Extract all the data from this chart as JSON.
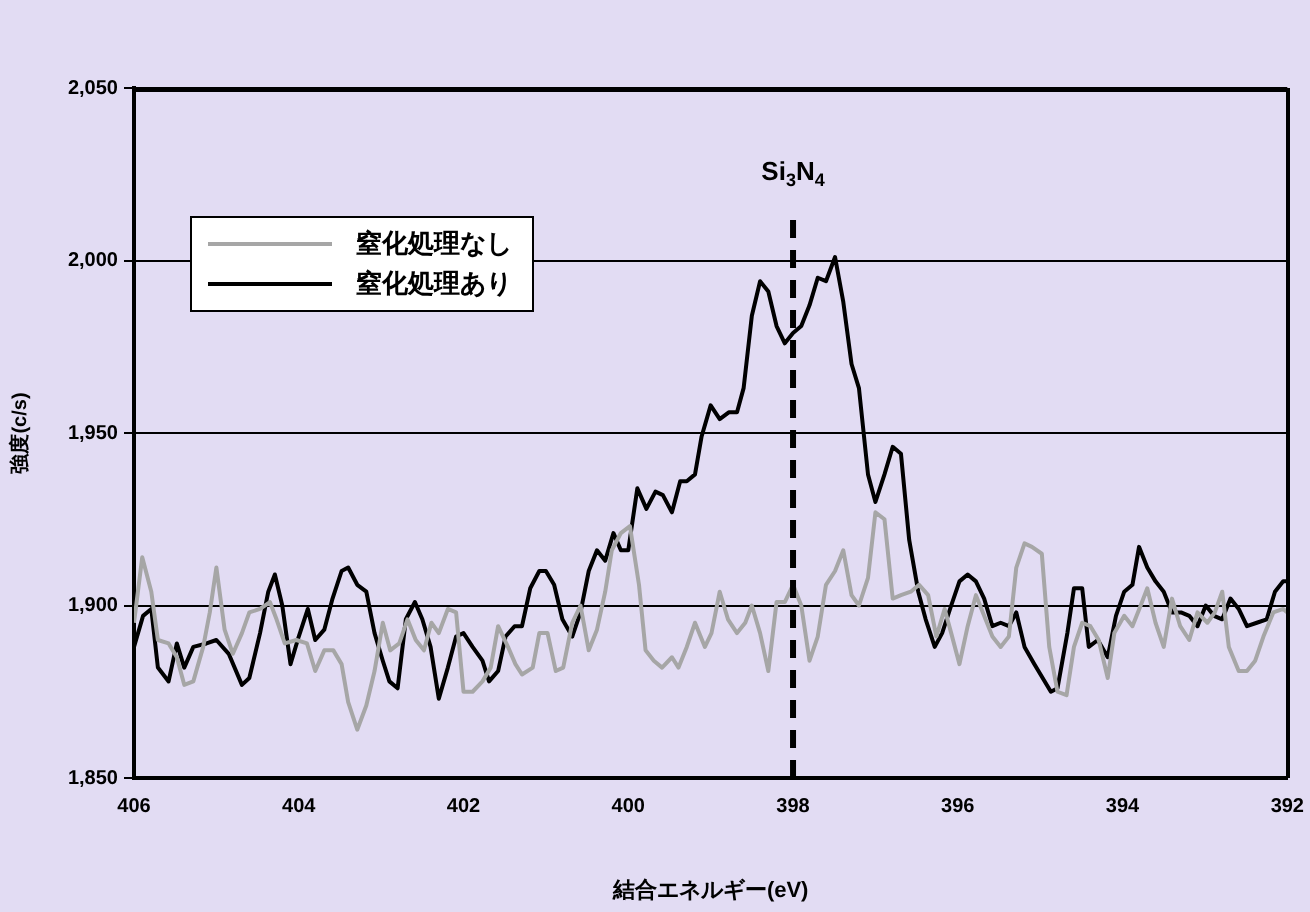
{
  "chart_data": {
    "type": "line",
    "xlabel": "結合エネルギー(eV)",
    "ylabel": "強度(c/s)",
    "xlim": [
      406,
      392
    ],
    "xticks": [
      406,
      404,
      402,
      400,
      398,
      396,
      394,
      392
    ],
    "ylim": [
      1850,
      2050
    ],
    "yticks": [
      {
        "value": 1850,
        "label": "1,850"
      },
      {
        "value": 1900,
        "label": "1,900"
      },
      {
        "value": 1950,
        "label": "1,950"
      },
      {
        "value": 2000,
        "label": "2,000"
      },
      {
        "value": 2050,
        "label": "2,050"
      }
    ],
    "grid": "y",
    "legend": "top left",
    "marker": "none",
    "ref_lines": [
      {
        "axis": "x",
        "value": 398,
        "label": "Si$_{3}$N$_{4}$",
        "line_style": "dashed",
        "color": "#000000"
      }
    ],
    "series": [
      {
        "name": "窒化処理なし",
        "color": "#a6a6a6",
        "x": [
          406.0,
          405.9,
          405.79,
          405.71,
          405.58,
          405.48,
          405.39,
          405.28,
          405.16,
          405.08,
          405.0,
          404.9,
          404.8,
          404.69,
          404.6,
          404.47,
          404.35,
          404.27,
          404.17,
          404.03,
          403.9,
          403.8,
          403.69,
          403.58,
          403.48,
          403.4,
          403.29,
          403.18,
          403.08,
          402.98,
          402.89,
          402.78,
          402.68,
          402.58,
          402.48,
          402.39,
          402.3,
          402.19,
          402.09,
          402.0,
          401.89,
          401.77,
          401.67,
          401.58,
          401.46,
          401.37,
          401.29,
          401.16,
          401.08,
          400.98,
          400.88,
          400.79,
          400.68,
          400.58,
          400.48,
          400.38,
          400.28,
          400.2,
          400.09,
          399.98,
          399.87,
          399.79,
          399.69,
          399.59,
          399.47,
          399.39,
          399.29,
          399.19,
          399.07,
          398.99,
          398.89,
          398.79,
          398.68,
          398.58,
          398.5,
          398.4,
          398.3,
          398.2,
          398.1,
          398.0,
          397.9,
          397.8,
          397.7,
          397.6,
          397.49,
          397.39,
          397.29,
          397.2,
          397.09,
          397.0,
          396.89,
          396.79,
          396.69,
          396.57,
          396.47,
          396.36,
          396.26,
          396.16,
          396.08,
          395.98,
          395.88,
          395.78,
          395.68,
          395.58,
          395.48,
          395.38,
          395.29,
          395.19,
          395.1,
          394.98,
          394.89,
          394.79,
          394.68,
          394.59,
          394.49,
          394.39,
          394.29,
          394.18,
          394.1,
          393.98,
          393.88,
          393.78,
          393.7,
          393.6,
          393.5,
          393.4,
          393.3,
          393.19,
          393.09,
          392.97,
          392.88,
          392.79,
          392.71,
          392.59,
          392.49,
          392.39,
          392.29,
          392.17,
          392.05,
          392.0
        ],
        "values": [
          1895,
          1914,
          1904,
          1890,
          1889,
          1885,
          1877,
          1878,
          1888,
          1898,
          1911,
          1893,
          1886,
          1892,
          1898,
          1899,
          1901,
          1896,
          1889,
          1890,
          1889,
          1881,
          1887,
          1887,
          1883,
          1872,
          1864,
          1871,
          1881,
          1895,
          1887,
          1889,
          1896,
          1890,
          1887,
          1895,
          1892,
          1899,
          1898,
          1875,
          1875,
          1878,
          1882,
          1894,
          1888,
          1883,
          1880,
          1882,
          1892,
          1892,
          1881,
          1882,
          1895,
          1900,
          1887,
          1893,
          1904,
          1916,
          1921,
          1923,
          1906,
          1887,
          1884,
          1882,
          1885,
          1882,
          1888,
          1895,
          1888,
          1892,
          1904,
          1896,
          1892,
          1895,
          1900,
          1892,
          1881,
          1901,
          1901,
          1906,
          1900,
          1884,
          1891,
          1906,
          1910,
          1916,
          1903,
          1900,
          1908,
          1927,
          1925,
          1902,
          1903,
          1904,
          1906,
          1903,
          1891,
          1899,
          1892,
          1883,
          1894,
          1903,
          1897,
          1891,
          1888,
          1891,
          1911,
          1918,
          1917,
          1915,
          1888,
          1875,
          1874,
          1888,
          1895,
          1894,
          1890,
          1879,
          1892,
          1897,
          1894,
          1900,
          1905,
          1895,
          1888,
          1902,
          1894,
          1890,
          1898,
          1895,
          1898,
          1904,
          1888,
          1881,
          1881,
          1884,
          1891,
          1898,
          1899,
          1898
        ]
      },
      {
        "name": "窒化処理あり",
        "color": "#000000",
        "x": [
          406.0,
          405.89,
          405.79,
          405.71,
          405.58,
          405.48,
          405.39,
          405.28,
          405.12,
          405.0,
          404.85,
          404.69,
          404.6,
          404.47,
          404.37,
          404.29,
          404.2,
          404.1,
          404.0,
          403.89,
          403.8,
          403.69,
          403.59,
          403.48,
          403.4,
          403.29,
          403.18,
          403.08,
          402.98,
          402.9,
          402.8,
          402.7,
          402.59,
          402.5,
          402.4,
          402.3,
          402.19,
          402.09,
          402.0,
          401.89,
          401.77,
          401.69,
          401.58,
          401.49,
          401.38,
          401.29,
          401.19,
          401.08,
          401.0,
          400.9,
          400.8,
          400.68,
          400.58,
          400.48,
          400.38,
          400.28,
          400.18,
          400.09,
          400.0,
          399.89,
          399.78,
          399.67,
          399.58,
          399.47,
          399.37,
          399.29,
          399.19,
          399.11,
          399.0,
          398.89,
          398.78,
          398.68,
          398.6,
          398.5,
          398.4,
          398.3,
          398.2,
          398.1,
          398.0,
          397.9,
          397.8,
          397.7,
          397.6,
          397.49,
          397.39,
          397.29,
          397.2,
          397.09,
          397.0,
          396.89,
          396.79,
          396.69,
          396.59,
          396.48,
          396.39,
          396.28,
          396.19,
          396.08,
          395.98,
          395.88,
          395.78,
          395.68,
          395.58,
          395.48,
          395.38,
          395.29,
          395.19,
          395.07,
          394.97,
          394.87,
          394.79,
          394.67,
          394.59,
          394.49,
          394.41,
          394.3,
          394.18,
          394.08,
          393.98,
          393.88,
          393.8,
          393.7,
          393.6,
          393.5,
          393.4,
          393.29,
          393.19,
          393.09,
          392.99,
          392.89,
          392.79,
          392.69,
          392.59,
          392.49,
          392.37,
          392.25,
          392.15,
          392.05,
          392.0
        ],
        "values": [
          1888,
          1897,
          1899,
          1882,
          1878,
          1889,
          1882,
          1888,
          1889,
          1890,
          1886,
          1877,
          1879,
          1892,
          1904,
          1909,
          1900,
          1883,
          1891,
          1899,
          1890,
          1893,
          1902,
          1910,
          1911,
          1906,
          1904,
          1892,
          1884,
          1878,
          1876,
          1896,
          1901,
          1896,
          1888,
          1873,
          1882,
          1891,
          1892,
          1888,
          1884,
          1878,
          1881,
          1891,
          1894,
          1894,
          1905,
          1910,
          1910,
          1906,
          1896,
          1891,
          1898,
          1910,
          1916,
          1913,
          1921,
          1916,
          1916,
          1934,
          1928,
          1933,
          1932,
          1927,
          1936,
          1936,
          1938,
          1949,
          1958,
          1954,
          1956,
          1956,
          1963,
          1984,
          1994,
          1991,
          1981,
          1976,
          1979,
          1981,
          1987,
          1995,
          1994,
          2001,
          1988,
          1970,
          1963,
          1938,
          1930,
          1938,
          1946,
          1944,
          1919,
          1904,
          1896,
          1888,
          1892,
          1900,
          1907,
          1909,
          1907,
          1902,
          1894,
          1895,
          1894,
          1898,
          1888,
          1883,
          1879,
          1875,
          1876,
          1892,
          1905,
          1905,
          1888,
          1890,
          1885,
          1897,
          1904,
          1906,
          1917,
          1911,
          1907,
          1904,
          1898,
          1898,
          1897,
          1894,
          1900,
          1897,
          1896,
          1902,
          1899,
          1894,
          1895,
          1896,
          1904,
          1907,
          1907
        ]
      }
    ]
  }
}
